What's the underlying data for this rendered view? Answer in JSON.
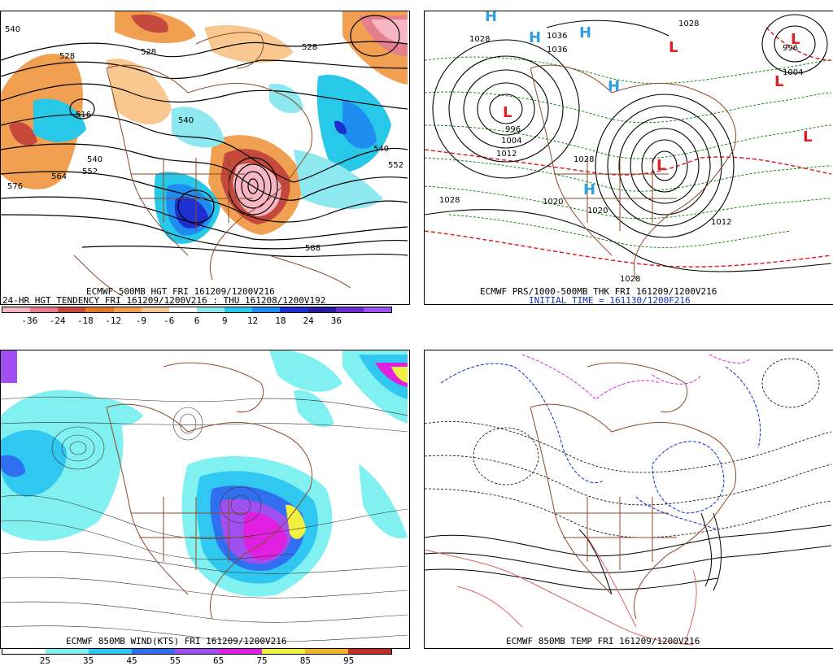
{
  "panels": {
    "p1": {
      "caption1": "ECMWF 500MB HGT FRI 161209/1200V216",
      "caption2": "24-HR HGT TENDENCY FRI 161209/1200V216 : THU 161208/1200V192",
      "contour_labels": [
        "540",
        "528",
        "528",
        "516",
        "540",
        "552",
        "564",
        "576",
        "540",
        "552",
        "528",
        "588",
        "540"
      ],
      "scale_labels": [
        "-36",
        "-24",
        "-18",
        "-12",
        "-9",
        "-6",
        "6",
        "9",
        "12",
        "18",
        "24",
        "36"
      ],
      "scale_colors": [
        "#f6b6c4",
        "#e57f8e",
        "#c54a3d",
        "#e07a2a",
        "#f0a050",
        "#f8c890",
        "#ffffff",
        "#8ee8f0",
        "#28c8e8",
        "#1e8cf0",
        "#1e2ed0",
        "#2a1aa0",
        "#6a2ad0",
        "#a050f0"
      ]
    },
    "p2": {
      "caption1": "ECMWF PRS/1000-500MB THK FRI 161209/1200V216",
      "caption2": "INITIAL TIME = 161130/1200F216",
      "pressure_labels": [
        "1028",
        "1036",
        "1036",
        "1028",
        "996",
        "1004",
        "1012",
        "1028",
        "1020",
        "1028",
        "1020",
        "1012",
        "1028",
        "996",
        "1004"
      ]
    },
    "p3": {
      "caption1": "ECMWF 850MB WIND(KTS) FRI 161209/1200V216",
      "scale_labels": [
        "25",
        "35",
        "45",
        "55",
        "65",
        "75",
        "85",
        "95"
      ],
      "scale_colors": [
        "#ffffff",
        "#80f0f0",
        "#30c8f0",
        "#3070f0",
        "#a050f0",
        "#e020e0",
        "#f0f040",
        "#f0b030",
        "#c03020"
      ]
    },
    "p4": {
      "caption1": "ECMWF 850MB TEMP FRI 161209/1200V216"
    }
  }
}
